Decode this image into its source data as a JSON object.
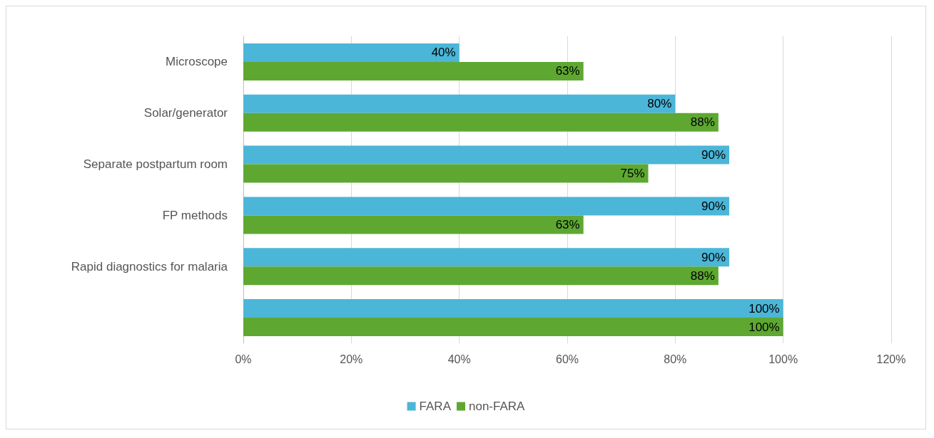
{
  "chart_data": {
    "type": "bar",
    "orientation": "horizontal",
    "categories": [
      "Microscope",
      "Solar/generator",
      "Separate postpartum room",
      "FP methods",
      "Rapid diagnostics for malaria",
      null
    ],
    "series": [
      {
        "name": "FARA",
        "color": "#4bb6d8",
        "values": [
          40,
          80,
          90,
          90,
          90,
          100
        ],
        "value_labels": [
          "40%",
          "80%",
          "90%",
          "90%",
          "90%",
          "100%"
        ]
      },
      {
        "name": "non-FARA",
        "color": "#5ea832",
        "values": [
          63,
          88,
          75,
          63,
          88,
          100
        ],
        "value_labels": [
          "63%",
          "88%",
          "75%",
          "63%",
          "88%",
          "100%"
        ]
      }
    ],
    "xlim": [
      0,
      120
    ],
    "xticks": [
      {
        "value": 0,
        "label": "0%"
      },
      {
        "value": 20,
        "label": "20%"
      },
      {
        "value": 40,
        "label": "40%"
      },
      {
        "value": 60,
        "label": "60%"
      },
      {
        "value": 80,
        "label": "80%"
      },
      {
        "value": 100,
        "label": "100%"
      },
      {
        "value": 120,
        "label": "120%"
      }
    ],
    "grid": "x",
    "legend": "bottom"
  }
}
